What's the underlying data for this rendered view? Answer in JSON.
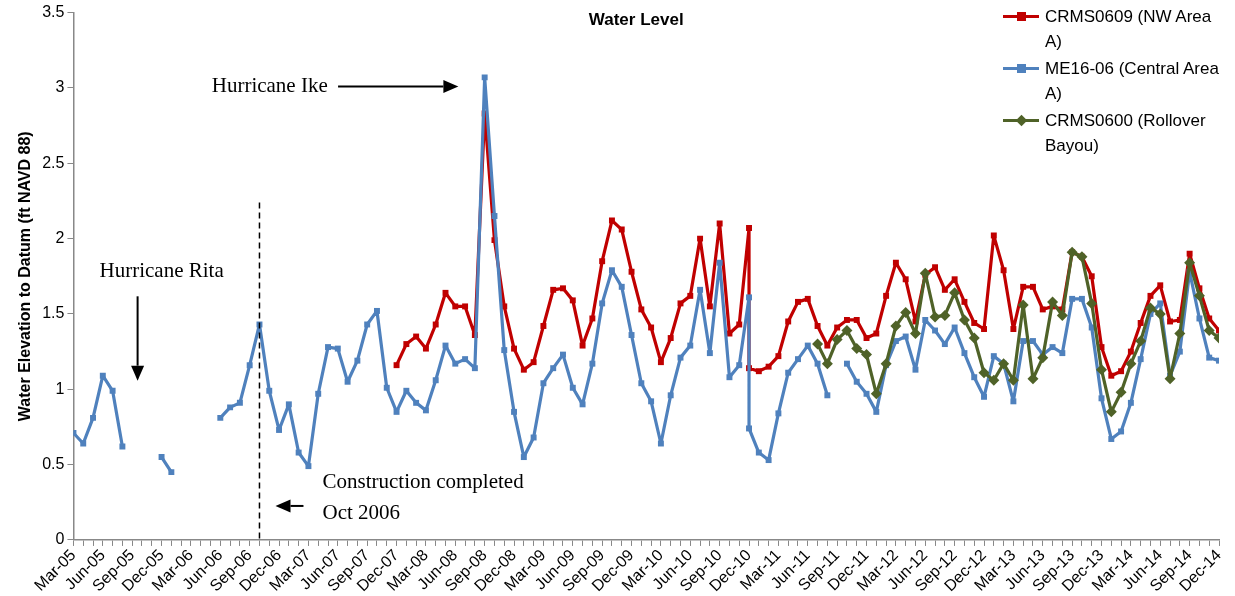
{
  "chart_data": {
    "type": "line",
    "title": "Water Level",
    "ylabel": "Water Elevation to Datum (ft NAVD 88)",
    "x": [
      "2005-03",
      "2005-04",
      "2005-05",
      "2005-06",
      "2005-07",
      "2005-08",
      "2005-09",
      "2005-10",
      "2005-11",
      "2005-12",
      "2006-01",
      "2006-02",
      "2006-03",
      "2006-04",
      "2006-05",
      "2006-06",
      "2006-07",
      "2006-08",
      "2006-09",
      "2006-10",
      "2006-11",
      "2006-12",
      "2007-01",
      "2007-02",
      "2007-03",
      "2007-04",
      "2007-05",
      "2007-06",
      "2007-07",
      "2007-08",
      "2007-09",
      "2007-10",
      "2007-11",
      "2007-12",
      "2008-01",
      "2008-02",
      "2008-03",
      "2008-04",
      "2008-05",
      "2008-06",
      "2008-07",
      "2008-08",
      "2008-09",
      "2008-10",
      "2008-11",
      "2008-12",
      "2009-01",
      "2009-02",
      "2009-03",
      "2009-04",
      "2009-05",
      "2009-06",
      "2009-07",
      "2009-08",
      "2009-09",
      "2009-10",
      "2009-11",
      "2009-12",
      "2010-01",
      "2010-02",
      "2010-03",
      "2010-04",
      "2010-05",
      "2010-06",
      "2010-07",
      "2010-08",
      "2010-09",
      "2010-10",
      "2010-11",
      "2010-12",
      "2010-12",
      "2011-01",
      "2011-02",
      "2011-03",
      "2011-04",
      "2011-05",
      "2011-06",
      "2011-07",
      "2011-08",
      "2011-09",
      "2011-10",
      "2011-11",
      "2011-12",
      "2012-01",
      "2012-02",
      "2012-03",
      "2012-04",
      "2012-05",
      "2012-06",
      "2012-07",
      "2012-08",
      "2012-09",
      "2012-10",
      "2012-11",
      "2012-12",
      "2013-01",
      "2013-02",
      "2013-03",
      "2013-04",
      "2013-05",
      "2013-06",
      "2013-07",
      "2013-08",
      "2013-09",
      "2013-10",
      "2013-11",
      "2013-12",
      "2014-01",
      "2014-02",
      "2014-03",
      "2014-04",
      "2014-05",
      "2014-06",
      "2014-07",
      "2014-08",
      "2014-09",
      "2014-10",
      "2014-11",
      "2014-12"
    ],
    "series": [
      {
        "name": "CRMS0609 (NW Area A)",
        "color": "#c00000",
        "marker": "square",
        "values": [
          null,
          null,
          null,
          null,
          null,
          null,
          null,
          null,
          null,
          null,
          null,
          null,
          null,
          null,
          null,
          null,
          null,
          null,
          null,
          null,
          null,
          null,
          null,
          null,
          null,
          null,
          null,
          null,
          null,
          null,
          null,
          null,
          null,
          1.16,
          1.3,
          1.35,
          1.27,
          1.43,
          1.64,
          1.55,
          1.55,
          1.36,
          2.83,
          1.99,
          1.55,
          1.27,
          1.13,
          1.18,
          1.42,
          1.66,
          1.67,
          1.59,
          1.29,
          1.47,
          1.85,
          2.12,
          2.06,
          1.78,
          1.53,
          1.41,
          1.18,
          1.34,
          1.57,
          1.62,
          2.0,
          1.55,
          2.1,
          1.37,
          1.43,
          2.07,
          1.14,
          1.12,
          1.15,
          1.22,
          1.45,
          1.58,
          1.6,
          1.42,
          1.29,
          1.41,
          1.46,
          1.46,
          1.34,
          1.37,
          1.62,
          1.84,
          1.73,
          1.45,
          1.76,
          1.81,
          1.66,
          1.73,
          1.58,
          1.44,
          1.4,
          2.02,
          1.79,
          1.4,
          1.68,
          1.68,
          1.53,
          1.55,
          1.53,
          1.91,
          1.88,
          1.75,
          1.28,
          1.09,
          1.12,
          1.25,
          1.44,
          1.62,
          1.69,
          1.45,
          1.46,
          1.9,
          1.67,
          1.47,
          1.39
        ]
      },
      {
        "name": "ME16-06 (Central Area A)",
        "color": "#4f81bd",
        "marker": "square",
        "values": [
          0.71,
          0.64,
          0.81,
          1.09,
          0.99,
          0.62,
          null,
          null,
          null,
          0.55,
          0.45,
          null,
          null,
          null,
          null,
          0.81,
          0.88,
          0.91,
          1.16,
          1.43,
          0.99,
          0.73,
          0.9,
          0.58,
          0.49,
          0.97,
          1.28,
          1.27,
          1.05,
          1.19,
          1.43,
          1.52,
          1.01,
          0.85,
          0.99,
          0.91,
          0.86,
          1.06,
          1.29,
          1.17,
          1.2,
          1.14,
          3.07,
          2.15,
          1.26,
          0.85,
          0.55,
          0.68,
          1.04,
          1.14,
          1.23,
          1.01,
          0.9,
          1.17,
          1.57,
          1.79,
          1.68,
          1.36,
          1.04,
          0.92,
          0.64,
          0.96,
          1.21,
          1.29,
          1.66,
          1.24,
          1.84,
          1.08,
          1.16,
          1.61,
          0.74,
          0.58,
          0.53,
          0.84,
          1.11,
          1.2,
          1.29,
          1.17,
          0.96,
          null,
          1.17,
          1.05,
          0.97,
          0.85,
          1.16,
          1.32,
          1.35,
          1.13,
          1.46,
          1.39,
          1.3,
          1.41,
          1.24,
          1.08,
          0.95,
          1.22,
          1.17,
          0.92,
          1.32,
          1.32,
          1.23,
          1.28,
          1.24,
          1.6,
          1.6,
          1.41,
          0.94,
          0.67,
          0.72,
          0.91,
          1.2,
          1.5,
          1.57,
          1.09,
          1.25,
          1.78,
          1.47,
          1.21,
          1.19
        ]
      },
      {
        "name": "CRMS0600 (Rollover Bayou)",
        "color": "#4f6228",
        "marker": "diamond",
        "values": [
          null,
          null,
          null,
          null,
          null,
          null,
          null,
          null,
          null,
          null,
          null,
          null,
          null,
          null,
          null,
          null,
          null,
          null,
          null,
          null,
          null,
          null,
          null,
          null,
          null,
          null,
          null,
          null,
          null,
          null,
          null,
          null,
          null,
          null,
          null,
          null,
          null,
          null,
          null,
          null,
          null,
          null,
          null,
          null,
          null,
          null,
          null,
          null,
          null,
          null,
          null,
          null,
          null,
          null,
          null,
          null,
          null,
          null,
          null,
          null,
          null,
          null,
          null,
          null,
          null,
          null,
          null,
          null,
          null,
          null,
          null,
          null,
          null,
          null,
          null,
          null,
          null,
          1.3,
          1.17,
          1.33,
          1.39,
          1.27,
          1.23,
          0.97,
          1.17,
          1.42,
          1.51,
          1.37,
          1.77,
          1.48,
          1.49,
          1.64,
          1.46,
          1.34,
          1.11,
          1.06,
          1.17,
          1.06,
          1.56,
          1.07,
          1.21,
          1.58,
          1.49,
          1.91,
          1.88,
          1.57,
          1.13,
          0.85,
          0.98,
          1.17,
          1.32,
          1.54,
          1.5,
          1.07,
          1.37,
          1.84,
          1.62,
          1.39,
          1.34
        ]
      }
    ],
    "xlim": [
      "2005-03",
      "2014-12"
    ],
    "xticks": [
      {
        "value": "2005-03",
        "label": "Mar-05"
      },
      {
        "value": "2005-04",
        "label": null
      },
      {
        "value": "2005-05",
        "label": null
      },
      {
        "value": "2005-06",
        "label": "Jun-05"
      },
      {
        "value": "2005-07",
        "label": null
      },
      {
        "value": "2005-08",
        "label": null
      },
      {
        "value": "2005-09",
        "label": "Sep-05"
      },
      {
        "value": "2005-10",
        "label": null
      },
      {
        "value": "2005-11",
        "label": null
      },
      {
        "value": "2005-12",
        "label": "Dec-05"
      },
      {
        "value": "2006-01",
        "label": null
      },
      {
        "value": "2006-02",
        "label": null
      },
      {
        "value": "2006-03",
        "label": "Mar-06"
      },
      {
        "value": "2006-04",
        "label": null
      },
      {
        "value": "2006-05",
        "label": null
      },
      {
        "value": "2006-06",
        "label": "Jun-06"
      },
      {
        "value": "2006-07",
        "label": null
      },
      {
        "value": "2006-08",
        "label": null
      },
      {
        "value": "2006-09",
        "label": "Sep-06"
      },
      {
        "value": "2006-10",
        "label": null
      },
      {
        "value": "2006-11",
        "label": null
      },
      {
        "value": "2006-12",
        "label": "Dec-06"
      },
      {
        "value": "2007-01",
        "label": null
      },
      {
        "value": "2007-02",
        "label": null
      },
      {
        "value": "2007-03",
        "label": "Mar-07"
      },
      {
        "value": "2007-04",
        "label": null
      },
      {
        "value": "2007-05",
        "label": null
      },
      {
        "value": "2007-06",
        "label": "Jun-07"
      },
      {
        "value": "2007-07",
        "label": null
      },
      {
        "value": "2007-08",
        "label": null
      },
      {
        "value": "2007-09",
        "label": "Sep-07"
      },
      {
        "value": "2007-10",
        "label": null
      },
      {
        "value": "2007-11",
        "label": null
      },
      {
        "value": "2007-12",
        "label": "Dec-07"
      },
      {
        "value": "2008-01",
        "label": null
      },
      {
        "value": "2008-02",
        "label": null
      },
      {
        "value": "2008-03",
        "label": "Mar-08"
      },
      {
        "value": "2008-04",
        "label": null
      },
      {
        "value": "2008-05",
        "label": null
      },
      {
        "value": "2008-06",
        "label": "Jun-08"
      },
      {
        "value": "2008-07",
        "label": null
      },
      {
        "value": "2008-08",
        "label": null
      },
      {
        "value": "2008-09",
        "label": "Sep-08"
      },
      {
        "value": "2008-10",
        "label": null
      },
      {
        "value": "2008-11",
        "label": null
      },
      {
        "value": "2008-12",
        "label": "Dec-08"
      },
      {
        "value": "2009-01",
        "label": null
      },
      {
        "value": "2009-02",
        "label": null
      },
      {
        "value": "2009-03",
        "label": "Mar-09"
      },
      {
        "value": "2009-04",
        "label": null
      },
      {
        "value": "2009-05",
        "label": null
      },
      {
        "value": "2009-06",
        "label": "Jun-09"
      },
      {
        "value": "2009-07",
        "label": null
      },
      {
        "value": "2009-08",
        "label": null
      },
      {
        "value": "2009-09",
        "label": "Sep-09"
      },
      {
        "value": "2009-10",
        "label": null
      },
      {
        "value": "2009-11",
        "label": null
      },
      {
        "value": "2009-12",
        "label": "Dec-09"
      },
      {
        "value": "2010-01",
        "label": null
      },
      {
        "value": "2010-02",
        "label": null
      },
      {
        "value": "2010-03",
        "label": "Mar-10"
      },
      {
        "value": "2010-04",
        "label": null
      },
      {
        "value": "2010-05",
        "label": null
      },
      {
        "value": "2010-06",
        "label": "Jun-10"
      },
      {
        "value": "2010-07",
        "label": null
      },
      {
        "value": "2010-08",
        "label": null
      },
      {
        "value": "2010-09",
        "label": "Sep-10"
      },
      {
        "value": "2010-10",
        "label": null
      },
      {
        "value": "2010-11",
        "label": null
      },
      {
        "value": "2010-12",
        "label": "Dec-10"
      },
      {
        "value": "2011-01",
        "label": null
      },
      {
        "value": "2011-02",
        "label": null
      },
      {
        "value": "2011-03",
        "label": "Mar-11"
      },
      {
        "value": "2011-04",
        "label": null
      },
      {
        "value": "2011-05",
        "label": null
      },
      {
        "value": "2011-06",
        "label": "Jun-11"
      },
      {
        "value": "2011-07",
        "label": null
      },
      {
        "value": "2011-08",
        "label": null
      },
      {
        "value": "2011-09",
        "label": "Sep-11"
      },
      {
        "value": "2011-10",
        "label": null
      },
      {
        "value": "2011-11",
        "label": null
      },
      {
        "value": "2011-12",
        "label": "Dec-11"
      },
      {
        "value": "2012-01",
        "label": null
      },
      {
        "value": "2012-02",
        "label": null
      },
      {
        "value": "2012-03",
        "label": "Mar-12"
      },
      {
        "value": "2012-04",
        "label": null
      },
      {
        "value": "2012-05",
        "label": null
      },
      {
        "value": "2012-06",
        "label": "Jun-12"
      },
      {
        "value": "2012-07",
        "label": null
      },
      {
        "value": "2012-08",
        "label": null
      },
      {
        "value": "2012-09",
        "label": "Sep-12"
      },
      {
        "value": "2012-10",
        "label": null
      },
      {
        "value": "2012-11",
        "label": null
      },
      {
        "value": "2012-12",
        "label": "Dec-12"
      },
      {
        "value": "2013-01",
        "label": null
      },
      {
        "value": "2013-02",
        "label": null
      },
      {
        "value": "2013-03",
        "label": "Mar-13"
      },
      {
        "value": "2013-04",
        "label": null
      },
      {
        "value": "2013-05",
        "label": null
      },
      {
        "value": "2013-06",
        "label": "Jun-13"
      },
      {
        "value": "2013-07",
        "label": null
      },
      {
        "value": "2013-08",
        "label": null
      },
      {
        "value": "2013-09",
        "label": "Sep-13"
      },
      {
        "value": "2013-10",
        "label": null
      },
      {
        "value": "2013-11",
        "label": null
      },
      {
        "value": "2013-12",
        "label": "Dec-13"
      },
      {
        "value": "2014-01",
        "label": null
      },
      {
        "value": "2014-02",
        "label": null
      },
      {
        "value": "2014-03",
        "label": "Mar-14"
      },
      {
        "value": "2014-04",
        "label": null
      },
      {
        "value": "2014-05",
        "label": null
      },
      {
        "value": "2014-06",
        "label": "Jun-14"
      },
      {
        "value": "2014-07",
        "label": null
      },
      {
        "value": "2014-08",
        "label": null
      },
      {
        "value": "2014-09",
        "label": "Sep-14"
      },
      {
        "value": "2014-10",
        "label": null
      },
      {
        "value": "2014-11",
        "label": null
      },
      {
        "value": "2014-12",
        "label": "Dec-14"
      }
    ],
    "ylim": [
      0,
      3.5
    ],
    "yticks": [
      0,
      0.5,
      1,
      1.5,
      2,
      2.5,
      3,
      3.5
    ],
    "grid": false,
    "legend": "top right",
    "line_style": "solid",
    "ref_lines": [
      {
        "axis": "x",
        "value": "2006-10",
        "label": "Construction completed\nOct 2006",
        "color": "#000000",
        "line_style": "dashed"
      }
    ],
    "annotations": [
      "Hurricane Rita",
      "Hurricane Ike"
    ]
  }
}
